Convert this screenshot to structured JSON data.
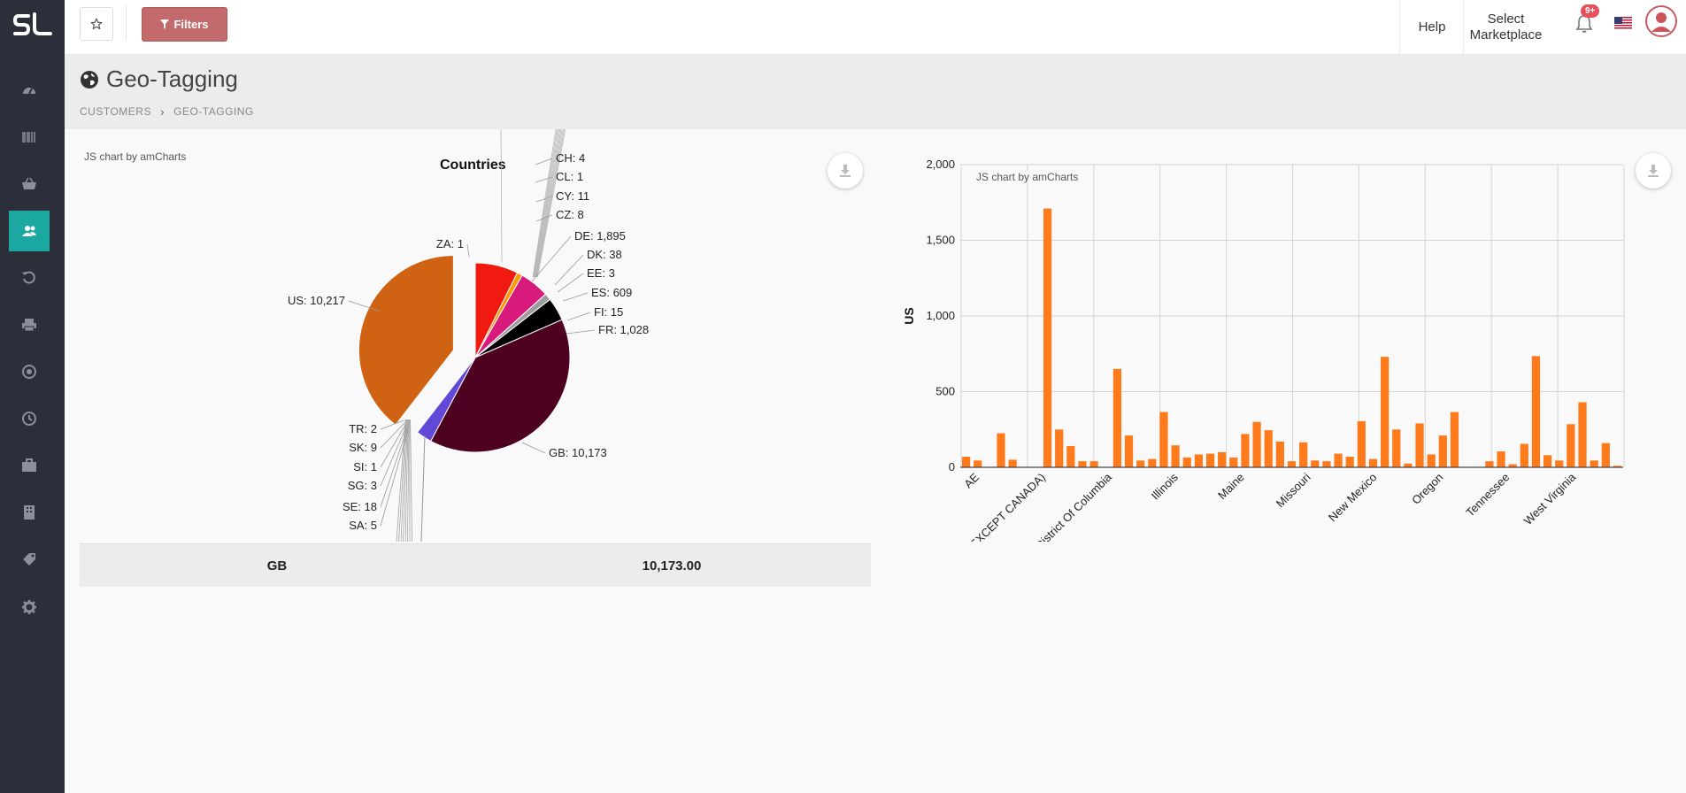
{
  "app": {
    "logo_text": "SL"
  },
  "sidebar": {
    "items": [
      {
        "icon": "dashboard-icon"
      },
      {
        "icon": "barcode-icon"
      },
      {
        "icon": "basket-icon"
      },
      {
        "icon": "users-icon",
        "active": true
      },
      {
        "icon": "history-icon"
      },
      {
        "icon": "printer-icon"
      },
      {
        "icon": "target-icon"
      },
      {
        "icon": "clock-icon"
      },
      {
        "icon": "briefcase-icon"
      },
      {
        "icon": "building-icon"
      },
      {
        "icon": "tag-icon"
      },
      {
        "icon": "gear-icon"
      }
    ]
  },
  "topbar": {
    "filters_label": "Filters",
    "help_label": "Help",
    "marketplace_line1": "Select",
    "marketplace_line2": "Marketplace",
    "notifications_badge": "9+"
  },
  "header": {
    "title": "Geo-Tagging",
    "breadcrumb": [
      "CUSTOMERS",
      "GEO-TAGGING"
    ]
  },
  "pie_panel": {
    "credit": "JS chart by amCharts"
  },
  "bar_panel": {
    "credit": "JS chart by amCharts"
  },
  "summary": {
    "label": "GB",
    "value": "10,173.00"
  },
  "chart_data": [
    {
      "type": "pie",
      "title": "Countries",
      "labels_shown": [
        {
          "name": "CH",
          "value": 4
        },
        {
          "name": "CL",
          "value": 1
        },
        {
          "name": "CY",
          "value": 11
        },
        {
          "name": "CZ",
          "value": 8
        },
        {
          "name": "DE",
          "value": 1895
        },
        {
          "name": "DK",
          "value": 38
        },
        {
          "name": "EE",
          "value": 3
        },
        {
          "name": "ES",
          "value": 609
        },
        {
          "name": "FI",
          "value": 15
        },
        {
          "name": "FR",
          "value": 1028
        },
        {
          "name": "GB",
          "value": 10173
        },
        {
          "name": "SA",
          "value": 5
        },
        {
          "name": "SE",
          "value": 18
        },
        {
          "name": "SG",
          "value": 3
        },
        {
          "name": "SI",
          "value": 1
        },
        {
          "name": "SK",
          "value": 9
        },
        {
          "name": "TR",
          "value": 2
        },
        {
          "name": "US",
          "value": 10217
        },
        {
          "name": "ZA",
          "value": 1
        }
      ],
      "slice_colors": {
        "DE": "#f01a10",
        "ES": "#d81a7c",
        "FI": "#9c9c9c",
        "FR": "#000000",
        "GB": "#4d0020",
        "US": "#d06214",
        "purple": "#6148d6",
        "small": "#ff9900"
      },
      "pulled_out": "US"
    },
    {
      "type": "bar",
      "ylabel": "US",
      "ylim": [
        0,
        2000
      ],
      "yticks": [
        "0",
        "500",
        "1,000",
        "1,500",
        "2,000"
      ],
      "xtick_labels": [
        "AE",
        "(EXCEPT CANADA)",
        "District Of Columbia",
        "Illinois",
        "Maine",
        "Missouri",
        "New Mexico",
        "Oregon",
        "Tennessee",
        "West Virginia"
      ],
      "bar_color": "#ff7a1a",
      "values": [
        70,
        45,
        0,
        225,
        50,
        0,
        0,
        1710,
        250,
        140,
        40,
        40,
        0,
        650,
        210,
        45,
        55,
        365,
        145,
        65,
        85,
        90,
        100,
        65,
        220,
        300,
        245,
        170,
        40,
        165,
        45,
        40,
        90,
        70,
        305,
        55,
        730,
        250,
        25,
        290,
        85,
        210,
        365,
        0,
        0,
        40,
        105,
        20,
        155,
        735,
        80,
        45,
        285,
        430,
        45,
        160,
        10
      ]
    }
  ]
}
